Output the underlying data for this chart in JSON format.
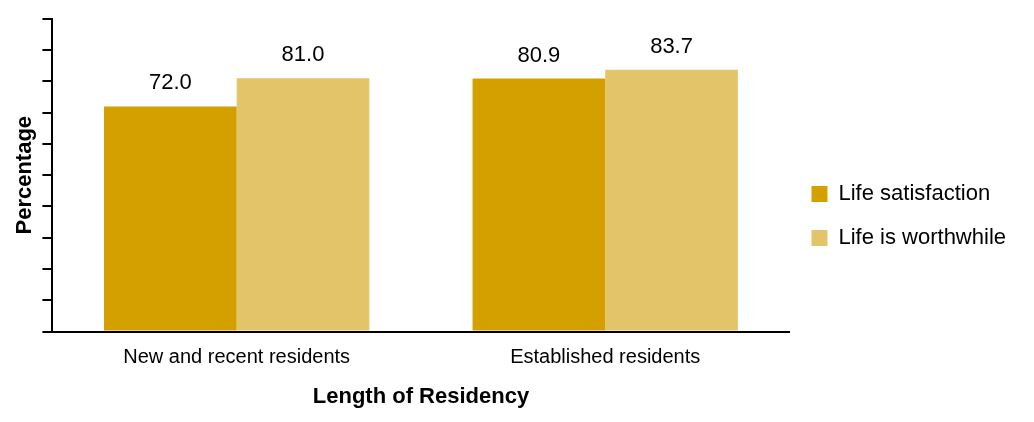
{
  "chart_data": {
    "type": "bar",
    "xlabel": "Length of Residency",
    "ylabel": "Percentage",
    "categories": [
      "New and recent residents",
      "Established residents"
    ],
    "series": [
      {
        "name": "Life satisfaction",
        "color": "#d4a000",
        "values": [
          72.0,
          80.9
        ],
        "value_labels": [
          "72.0",
          "80.9"
        ]
      },
      {
        "name": "Life is worthwhile",
        "color": "#e4c468",
        "values": [
          81.0,
          83.7
        ],
        "value_labels": [
          "81.0",
          "83.7"
        ]
      }
    ],
    "ylim": [
      0,
      100
    ],
    "yticks": [
      {
        "value": 0,
        "label": null
      },
      {
        "value": 10,
        "label": null
      },
      {
        "value": 20,
        "label": null
      },
      {
        "value": 30,
        "label": null
      },
      {
        "value": 40,
        "label": null
      },
      {
        "value": 50,
        "label": null
      },
      {
        "value": 60,
        "label": null
      },
      {
        "value": 70,
        "label": null
      },
      {
        "value": 80,
        "label": null
      },
      {
        "value": 90,
        "label": null
      },
      {
        "value": 100,
        "label": null
      }
    ],
    "tick_labels": "x",
    "legend": "right",
    "grid": false
  }
}
